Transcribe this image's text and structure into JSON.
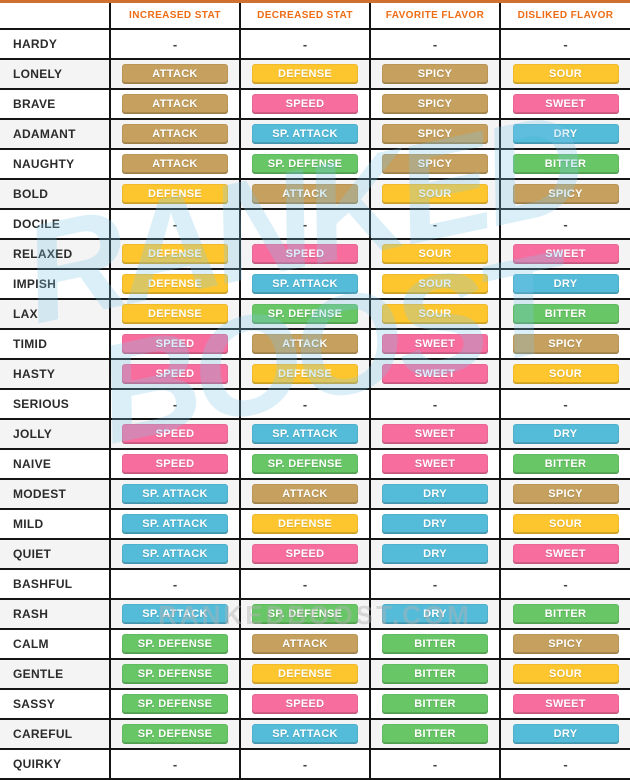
{
  "chart_data": {
    "type": "table",
    "title": "Pokemon Natures Chart",
    "columns": [
      "INCREASED STAT",
      "DECREASED STAT",
      "FAVORITE FLAVOR",
      "DISLIKED FLAVOR"
    ],
    "rows": [
      [
        "HARDY",
        "-",
        "-",
        "-",
        "-"
      ],
      [
        "LONELY",
        "ATTACK",
        "DEFENSE",
        "SPICY",
        "SOUR"
      ],
      [
        "BRAVE",
        "ATTACK",
        "SPEED",
        "SPICY",
        "SWEET"
      ],
      [
        "ADAMANT",
        "ATTACK",
        "SP. ATTACK",
        "SPICY",
        "DRY"
      ],
      [
        "NAUGHTY",
        "ATTACK",
        "SP. DEFENSE",
        "SPICY",
        "BITTER"
      ],
      [
        "BOLD",
        "DEFENSE",
        "ATTACK",
        "SOUR",
        "SPICY"
      ],
      [
        "DOCILE",
        "-",
        "-",
        "-",
        "-"
      ],
      [
        "RELAXED",
        "DEFENSE",
        "SPEED",
        "SOUR",
        "SWEET"
      ],
      [
        "IMPISH",
        "DEFENSE",
        "SP. ATTACK",
        "SOUR",
        "DRY"
      ],
      [
        "LAX",
        "DEFENSE",
        "SP. DEFENSE",
        "SOUR",
        "BITTER"
      ],
      [
        "TIMID",
        "SPEED",
        "ATTACK",
        "SWEET",
        "SPICY"
      ],
      [
        "HASTY",
        "SPEED",
        "DEFENSE",
        "SWEET",
        "SOUR"
      ],
      [
        "SERIOUS",
        "-",
        "-",
        "-",
        "-"
      ],
      [
        "JOLLY",
        "SPEED",
        "SP. ATTACK",
        "SWEET",
        "DRY"
      ],
      [
        "NAIVE",
        "SPEED",
        "SP. DEFENSE",
        "SWEET",
        "BITTER"
      ],
      [
        "MODEST",
        "SP. ATTACK",
        "ATTACK",
        "DRY",
        "SPICY"
      ],
      [
        "MILD",
        "SP. ATTACK",
        "DEFENSE",
        "DRY",
        "SOUR"
      ],
      [
        "QUIET",
        "SP. ATTACK",
        "SPEED",
        "DRY",
        "SWEET"
      ],
      [
        "BASHFUL",
        "-",
        "-",
        "-",
        "-"
      ],
      [
        "RASH",
        "SP. ATTACK",
        "SP. DEFENSE",
        "DRY",
        "BITTER"
      ],
      [
        "CALM",
        "SP. DEFENSE",
        "ATTACK",
        "BITTER",
        "SPICY"
      ],
      [
        "GENTLE",
        "SP. DEFENSE",
        "DEFENSE",
        "BITTER",
        "SOUR"
      ],
      [
        "SASSY",
        "SP. DEFENSE",
        "SPEED",
        "BITTER",
        "SWEET"
      ],
      [
        "CAREFUL",
        "SP. DEFENSE",
        "SP. ATTACK",
        "BITTER",
        "DRY"
      ],
      [
        "QUIRKY",
        "-",
        "-",
        "-",
        "-"
      ]
    ]
  },
  "badge_colors": {
    "ATTACK": "#c5a05e",
    "DEFENSE": "#fec62e",
    "SPEED": "#f76e9e",
    "SP. ATTACK": "#54bcd9",
    "SP. DEFENSE": "#68c666",
    "SPICY": "#c5a05e",
    "SOUR": "#fec62e",
    "SWEET": "#f76e9e",
    "DRY": "#54bcd9",
    "BITTER": "#68c666"
  },
  "colors": {
    "header_text": "#ee6c15",
    "grid_line": "#151515",
    "top_accent": "#cf7030",
    "alt_row": "#f4f4f4"
  },
  "watermark": {
    "line1": "RANKED",
    "line2": "BOOST",
    "url": "RANKEDBOOST.COM"
  }
}
